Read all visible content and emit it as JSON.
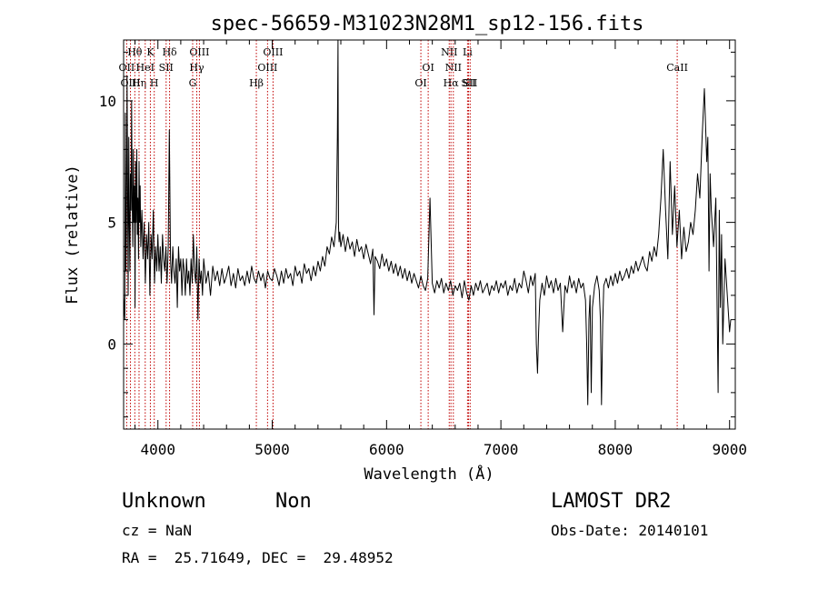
{
  "chart_data": {
    "type": "line",
    "title": "spec-56659-M31023N28M1_sp12-156.fits",
    "xlabel": "Wavelength (Å)",
    "ylabel": "Flux (relative)",
    "xlim": [
      3700,
      9050
    ],
    "ylim": [
      -3.5,
      12.5
    ],
    "xticks": [
      4000,
      5000,
      6000,
      7000,
      8000,
      9000
    ],
    "xtick_labels": [
      "4000",
      "5000",
      "6000",
      "7000",
      "8000",
      "9000"
    ],
    "yticks": [
      0,
      5,
      10
    ],
    "ytick_labels": [
      "0",
      "5",
      "10"
    ],
    "grid": false,
    "line_marks": [
      {
        "label": "Hθ",
        "x": 3798,
        "row": 1
      },
      {
        "label": "OII",
        "x": 3727,
        "row": 2
      },
      {
        "label": "OIII",
        "x": 3760,
        "row": 3
      },
      {
        "label": "Hη",
        "x": 3835,
        "row": 3
      },
      {
        "label": "HeI",
        "x": 3889,
        "row": 2
      },
      {
        "label": "K",
        "x": 3934,
        "row": 1
      },
      {
        "label": "H",
        "x": 3968,
        "row": 3
      },
      {
        "label": "SII",
        "x": 4072,
        "row": 2
      },
      {
        "label": "Hδ",
        "x": 4102,
        "row": 1
      },
      {
        "label": "OIII",
        "x": 4363,
        "row": 1
      },
      {
        "label": "Hγ",
        "x": 4340,
        "row": 2
      },
      {
        "label": "G",
        "x": 4304,
        "row": 3
      },
      {
        "label": "Hβ",
        "x": 4861,
        "row": 3
      },
      {
        "label": "OIII",
        "x": 4959,
        "row": 2
      },
      {
        "label": "OIII",
        "x": 5007,
        "row": 1
      },
      {
        "label": "OI",
        "x": 6300,
        "row": 3
      },
      {
        "label": "OI",
        "x": 6364,
        "row": 2
      },
      {
        "label": "NII",
        "x": 6548,
        "row": 1
      },
      {
        "label": "NII",
        "x": 6584,
        "row": 2
      },
      {
        "label": "Hα",
        "x": 6563,
        "row": 3
      },
      {
        "label": "SII",
        "x": 6717,
        "row": 3
      },
      {
        "label": "Li",
        "x": 6708,
        "row": 1
      },
      {
        "label": "SII",
        "x": 6731,
        "row": 3
      },
      {
        "label": "CaII",
        "x": 8542,
        "row": 2
      }
    ],
    "series": [
      {
        "color": "#000000",
        "x": [
          3700,
          3710,
          3715,
          3720,
          3725,
          3730,
          3735,
          3740,
          3745,
          3750,
          3755,
          3760,
          3765,
          3770,
          3775,
          3780,
          3785,
          3790,
          3795,
          3800,
          3805,
          3810,
          3815,
          3820,
          3825,
          3830,
          3835,
          3840,
          3845,
          3850,
          3860,
          3870,
          3880,
          3890,
          3900,
          3910,
          3920,
          3930,
          3940,
          3950,
          3960,
          3970,
          3980,
          3990,
          4000,
          4010,
          4020,
          4030,
          4040,
          4050,
          4060,
          4070,
          4080,
          4090,
          4100,
          4110,
          4120,
          4130,
          4140,
          4150,
          4160,
          4170,
          4180,
          4190,
          4200,
          4210,
          4220,
          4230,
          4240,
          4250,
          4260,
          4270,
          4280,
          4290,
          4300,
          4310,
          4320,
          4330,
          4340,
          4350,
          4360,
          4370,
          4380,
          4390,
          4400,
          4420,
          4440,
          4460,
          4480,
          4500,
          4520,
          4540,
          4560,
          4580,
          4600,
          4620,
          4640,
          4660,
          4680,
          4700,
          4720,
          4740,
          4760,
          4780,
          4800,
          4820,
          4840,
          4860,
          4880,
          4900,
          4920,
          4940,
          4960,
          4980,
          5000,
          5020,
          5040,
          5060,
          5080,
          5100,
          5120,
          5140,
          5160,
          5180,
          5200,
          5220,
          5240,
          5260,
          5280,
          5300,
          5320,
          5340,
          5360,
          5380,
          5400,
          5420,
          5440,
          5460,
          5480,
          5500,
          5520,
          5540,
          5560,
          5570,
          5575,
          5577,
          5580,
          5585,
          5590,
          5600,
          5620,
          5640,
          5660,
          5680,
          5700,
          5720,
          5740,
          5760,
          5780,
          5800,
          5820,
          5840,
          5860,
          5880,
          5890,
          5900,
          5920,
          5940,
          5960,
          5980,
          6000,
          6020,
          6040,
          6060,
          6080,
          6100,
          6120,
          6140,
          6160,
          6180,
          6200,
          6220,
          6240,
          6260,
          6280,
          6300,
          6320,
          6340,
          6360,
          6380,
          6400,
          6420,
          6440,
          6460,
          6480,
          6500,
          6520,
          6540,
          6560,
          6580,
          6600,
          6620,
          6640,
          6660,
          6680,
          6700,
          6720,
          6740,
          6760,
          6780,
          6800,
          6820,
          6840,
          6860,
          6880,
          6900,
          6920,
          6940,
          6960,
          6980,
          7000,
          7020,
          7040,
          7060,
          7080,
          7100,
          7120,
          7140,
          7160,
          7180,
          7200,
          7220,
          7240,
          7260,
          7280,
          7300,
          7310,
          7320,
          7330,
          7340,
          7360,
          7380,
          7400,
          7420,
          7440,
          7460,
          7480,
          7500,
          7520,
          7540,
          7560,
          7580,
          7600,
          7620,
          7640,
          7660,
          7680,
          7700,
          7720,
          7740,
          7750,
          7760,
          7770,
          7780,
          7790,
          7800,
          7820,
          7840,
          7860,
          7870,
          7880,
          7890,
          7900,
          7920,
          7940,
          7960,
          7980,
          8000,
          8020,
          8040,
          8060,
          8080,
          8100,
          8120,
          8140,
          8160,
          8180,
          8200,
          8220,
          8240,
          8260,
          8280,
          8300,
          8320,
          8340,
          8360,
          8380,
          8400,
          8420,
          8440,
          8460,
          8480,
          8500,
          8520,
          8540,
          8560,
          8580,
          8600,
          8620,
          8640,
          8660,
          8680,
          8700,
          8720,
          8740,
          8760,
          8780,
          8800,
          8810,
          8820,
          8830,
          8840,
          8860,
          8880,
          8900,
          8910,
          8920,
          8930,
          8940,
          8960,
          8980,
          9000,
          9010
        ],
        "y": [
          2.0,
          1.0,
          9.5,
          3.0,
          4.5,
          11.0,
          6.5,
          2.0,
          8.5,
          5.0,
          3.0,
          7.0,
          5.5,
          10.0,
          6.0,
          4.0,
          8.0,
          5.0,
          6.5,
          1.5,
          7.5,
          5.0,
          8.0,
          4.5,
          6.0,
          3.5,
          7.5,
          5.0,
          6.5,
          4.0,
          5.5,
          3.5,
          5.0,
          2.5,
          4.5,
          3.5,
          5.0,
          2.0,
          4.5,
          3.5,
          5.5,
          2.5,
          4.0,
          3.0,
          4.5,
          3.0,
          4.0,
          2.5,
          4.5,
          3.5,
          3.0,
          4.0,
          2.5,
          4.0,
          8.8,
          3.5,
          2.5,
          4.0,
          3.0,
          2.5,
          3.5,
          1.5,
          4.0,
          3.0,
          3.5,
          2.0,
          3.5,
          3.0,
          2.0,
          3.5,
          2.5,
          3.0,
          2.0,
          3.5,
          2.5,
          4.5,
          3.0,
          2.5,
          4.0,
          1.0,
          3.5,
          2.5,
          3.0,
          2.0,
          3.5,
          2.5,
          3.0,
          2.0,
          3.2,
          2.6,
          3.0,
          2.4,
          3.1,
          2.5,
          2.8,
          3.2,
          2.4,
          2.9,
          2.3,
          3.1,
          2.6,
          2.8,
          2.4,
          3.0,
          2.5,
          3.2,
          2.7,
          2.5,
          3.0,
          2.6,
          2.9,
          2.3,
          3.0,
          2.7,
          2.6,
          3.1,
          2.8,
          2.4,
          3.0,
          2.5,
          3.1,
          2.7,
          2.9,
          2.4,
          3.2,
          2.8,
          3.0,
          2.5,
          3.3,
          2.9,
          3.1,
          2.6,
          3.2,
          2.8,
          3.4,
          3.0,
          3.6,
          3.2,
          4.0,
          3.7,
          4.4,
          4.0,
          5.0,
          8.5,
          13.0,
          9.0,
          4.8,
          4.2,
          4.6,
          4.0,
          4.5,
          3.8,
          4.4,
          3.9,
          4.2,
          3.6,
          4.3,
          3.8,
          4.0,
          3.5,
          4.1,
          3.7,
          3.3,
          3.9,
          1.2,
          3.6,
          3.4,
          3.1,
          3.7,
          3.2,
          3.5,
          3.0,
          3.4,
          2.9,
          3.3,
          2.8,
          3.2,
          2.7,
          3.1,
          2.6,
          3.0,
          2.5,
          2.9,
          2.6,
          2.3,
          2.8,
          2.4,
          2.2,
          2.7,
          6.0,
          2.5,
          2.1,
          2.6,
          2.3,
          2.7,
          2.1,
          2.5,
          2.2,
          2.6,
          2.0,
          2.4,
          2.2,
          2.5,
          1.9,
          2.6,
          2.1,
          1.8,
          2.4,
          2.0,
          2.5,
          2.2,
          2.6,
          2.1,
          2.3,
          2.5,
          2.0,
          2.4,
          2.2,
          2.6,
          2.1,
          2.5,
          2.3,
          2.6,
          2.0,
          2.4,
          2.2,
          2.7,
          2.1,
          2.5,
          2.3,
          3.0,
          2.6,
          2.1,
          2.8,
          2.4,
          2.9,
          0.0,
          -1.2,
          0.5,
          1.8,
          2.5,
          2.0,
          2.8,
          2.3,
          2.6,
          2.1,
          2.7,
          2.2,
          2.5,
          0.5,
          2.4,
          2.1,
          2.8,
          2.3,
          2.6,
          2.1,
          2.7,
          2.3,
          2.5,
          1.8,
          0.0,
          -2.5,
          1.0,
          2.0,
          -2.0,
          1.5,
          2.4,
          2.8,
          2.2,
          1.0,
          -2.5,
          0.8,
          2.4,
          2.7,
          2.3,
          2.8,
          2.4,
          2.9,
          2.5,
          3.0,
          2.6,
          2.8,
          3.1,
          2.7,
          3.2,
          2.9,
          3.4,
          3.0,
          3.3,
          3.6,
          3.2,
          3.0,
          3.8,
          3.4,
          4.0,
          3.6,
          4.5,
          6.0,
          8.0,
          5.5,
          3.5,
          7.5,
          4.5,
          6.5,
          4.0,
          5.5,
          3.5,
          4.8,
          3.8,
          4.2,
          5.0,
          4.5,
          5.5,
          7.0,
          6.0,
          8.5,
          10.5,
          7.5,
          8.5,
          3.0,
          7.0,
          5.5,
          4.0,
          6.0,
          -2.0,
          5.5,
          1.5,
          4.5,
          0.0,
          3.5,
          2.0,
          0.5,
          1.0
        ]
      }
    ]
  },
  "info": {
    "class": "Unknown",
    "subclass": "Non",
    "survey": "LAMOST DR2",
    "cz": "cz = NaN",
    "obs_date": "Obs-Date: 20140101",
    "radec": "RA =  25.71649, DEC =  29.48952"
  }
}
